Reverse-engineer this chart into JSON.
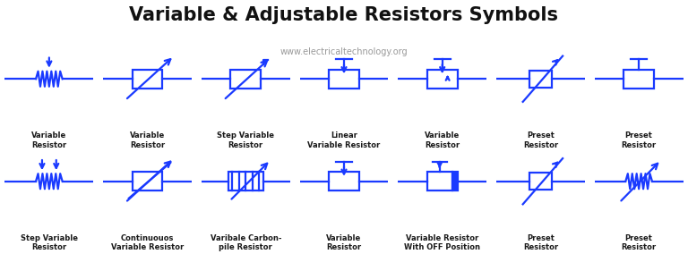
{
  "title": "Variable & Adjustable Resistors Symbols",
  "subtitle": "www.electricaltechnology.org",
  "title_color": "#111111",
  "subtitle_color": "#999999",
  "blue": "#1a3aff",
  "bg_gray": "#dcdcdc",
  "bg_white": "#f0f0f0",
  "row1_labels": [
    "Variable\nResistor",
    "Variable\nResistor",
    "Step Variable\nResistor",
    "Linear\nVariable Resistor",
    "Variable\nResistor",
    "Preset\nResistor",
    "Preset\nResistor"
  ],
  "row2_labels": [
    "Step Variable\nResistor",
    "Continuouos\nVariable Resistor",
    "Varibale Carbon-\npile Resistor",
    "Variable\nResistor",
    "Variable Resistor\nWith OFF Position",
    "Preset\nResistor",
    "Preset\nResistor"
  ],
  "fig_w": 7.68,
  "fig_h": 2.84,
  "dpi": 100
}
